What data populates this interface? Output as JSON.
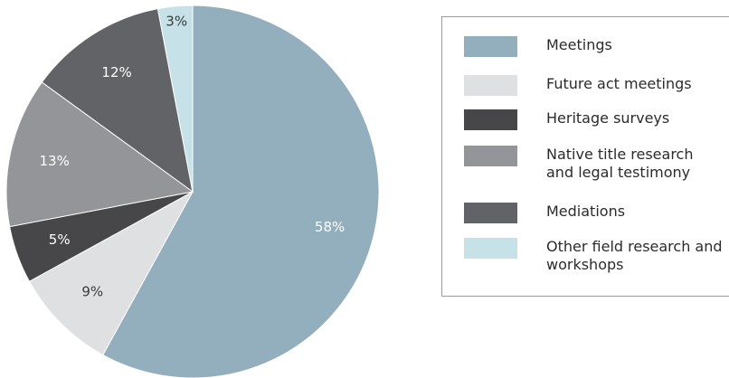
{
  "chart_data": {
    "type": "pie",
    "title": "",
    "categories": [
      "Meetings",
      "Future act meetings",
      "Heritage surveys",
      "Native title research\nand legal testimony",
      "Mediations",
      "Other field research and\nworkshops"
    ],
    "values": [
      58,
      9,
      5,
      13,
      12,
      3
    ],
    "data_labels": [
      "58%",
      "9%",
      "5%",
      "13%",
      "12%",
      "3%"
    ],
    "colors": [
      "#93aebd",
      "#dfe0e2",
      "#474749",
      "#939598",
      "#626366",
      "#c6e1e8"
    ],
    "label_colors": [
      "#ffffff",
      "#3a3a3a",
      "#ffffff",
      "#ffffff",
      "#ffffff",
      "#3a3a3a"
    ],
    "start_angle_deg": 0,
    "direction": "clockwise",
    "legend_position": "right"
  }
}
